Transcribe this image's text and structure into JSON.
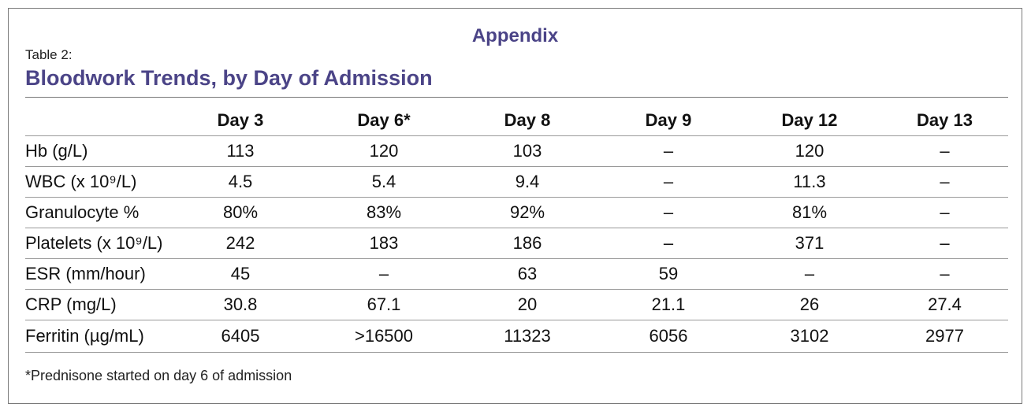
{
  "appendix_heading": "Appendix",
  "table_label": "Table 2:",
  "table_title": "Bloodwork Trends, by Day of Admission",
  "columns": [
    "",
    "Day 3",
    "Day 6*",
    "Day 8",
    "Day 9",
    "Day 12",
    "Day 13"
  ],
  "rows": [
    {
      "label": "Hb (g/L)",
      "cells": [
        "113",
        "120",
        "103",
        "–",
        "120",
        "–"
      ]
    },
    {
      "label": "WBC (x 10⁹/L)",
      "cells": [
        "4.5",
        "5.4",
        "9.4",
        "–",
        "11.3",
        "–"
      ]
    },
    {
      "label": "Granulocyte %",
      "cells": [
        "80%",
        "83%",
        "92%",
        "–",
        "81%",
        "–"
      ]
    },
    {
      "label": "Platelets (x 10⁹/L)",
      "cells": [
        "242",
        "183",
        "186",
        "–",
        "371",
        "–"
      ]
    },
    {
      "label": "ESR (mm/hour)",
      "cells": [
        "45",
        "–",
        "63",
        "59",
        "–",
        "–"
      ]
    },
    {
      "label": "CRP (mg/L)",
      "cells": [
        "30.8",
        "67.1",
        "20",
        "21.1",
        "26",
        "27.4"
      ]
    },
    {
      "label": "Ferritin  (µg/mL)",
      "cells": [
        "6405",
        ">16500",
        "11323",
        "6056",
        "3102",
        "2977"
      ]
    }
  ],
  "footnote": "*Prednisone started on day 6 of admission"
}
